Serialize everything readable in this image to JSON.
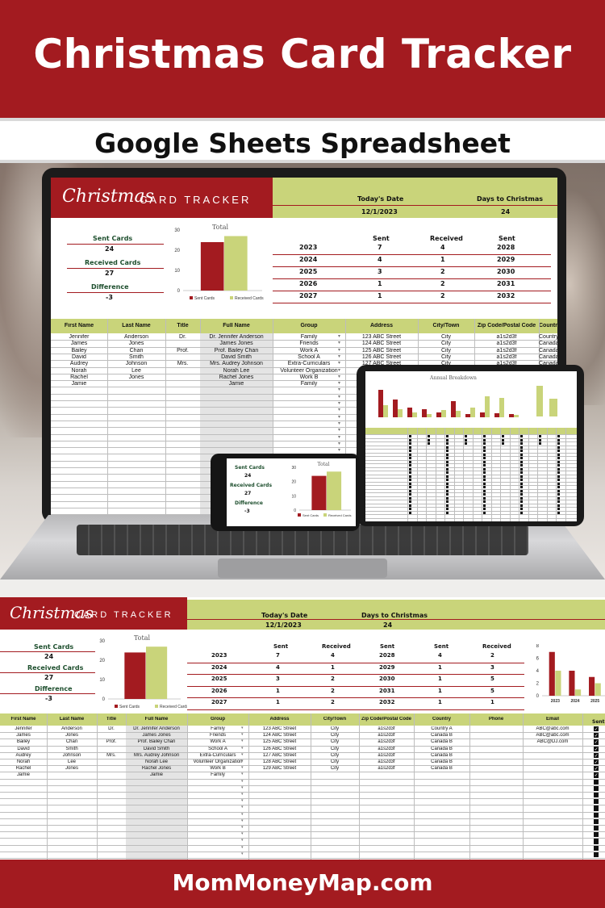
{
  "banner": {
    "title": "Christmas Card Tracker",
    "subtitle": "Google Sheets Spreadsheet"
  },
  "footer": {
    "site": "MomMoneyMap.com"
  },
  "colors": {
    "brand_red": "#a31b20",
    "brand_green": "#c9d47a",
    "label_green": "#1e4f2e"
  },
  "brand": {
    "script": "Christmas",
    "caps": "CARD TRACKER"
  },
  "header": {
    "todays_date_label": "Today's Date",
    "todays_date": "12/1/2023",
    "days_label": "Days to Christmas",
    "days": "24"
  },
  "summary": {
    "sent_label": "Sent Cards",
    "sent": "24",
    "received_label": "Received Cards",
    "received": "27",
    "difference_label": "Difference",
    "difference": "-3"
  },
  "chart_total": {
    "title": "Total",
    "legend": [
      "Sent Cards",
      "Received Cards"
    ]
  },
  "chart_data": [
    {
      "type": "bar",
      "title": "Total",
      "categories": [
        ""
      ],
      "series": [
        {
          "name": "Sent Cards",
          "values": [
            24
          ]
        },
        {
          "name": "Received Cards",
          "values": [
            27
          ]
        }
      ],
      "ylim": [
        0,
        30
      ],
      "yticks": [
        0,
        10,
        20,
        30
      ],
      "legend": "bottom"
    },
    {
      "type": "bar",
      "title": "",
      "categories": [
        "2023",
        "2024",
        "2025"
      ],
      "series": [
        {
          "name": "Sent",
          "values": [
            7,
            4,
            3
          ]
        },
        {
          "name": "Received",
          "values": [
            4,
            1,
            2
          ]
        }
      ],
      "ylim": [
        0,
        8
      ],
      "yticks": [
        0,
        2,
        4,
        6,
        8
      ]
    }
  ],
  "years": {
    "sent_label": "Sent",
    "received_label": "Received",
    "rows": [
      {
        "year": "2023",
        "sent": "7",
        "received": "4"
      },
      {
        "year": "2024",
        "sent": "4",
        "received": "1"
      },
      {
        "year": "2025",
        "sent": "3",
        "received": "2"
      },
      {
        "year": "2026",
        "sent": "1",
        "received": "2"
      },
      {
        "year": "2027",
        "sent": "1",
        "received": "2"
      }
    ]
  },
  "future_years": {
    "sent_label": "Sent",
    "received_label": "Received",
    "rows": [
      {
        "year": "2028",
        "sent": "4",
        "received": "2"
      },
      {
        "year": "2029",
        "sent": "1",
        "received": "3"
      },
      {
        "year": "2030",
        "sent": "1",
        "received": "5"
      },
      {
        "year": "2031",
        "sent": "1",
        "received": "5"
      },
      {
        "year": "2032",
        "sent": "1",
        "received": "1"
      }
    ]
  },
  "table": {
    "headers": [
      "First Name",
      "Last Name",
      "Title",
      "Full Name",
      "Group",
      "Address",
      "City/Town",
      "Zip Code/Postal Code",
      "Country",
      "Phone",
      "Email"
    ],
    "extra_header": "Sent",
    "rows": [
      [
        "Jennifer",
        "Anderson",
        "Dr.",
        "Dr. Jennifer Anderson",
        "Family",
        "123 ABC Street",
        "City",
        "a1s2d3f",
        "Country A",
        "",
        "ABC@abc.com"
      ],
      [
        "James",
        "Jones",
        "",
        "James Jones",
        "Friends",
        "124 ABC Street",
        "City",
        "a1s2d3f",
        "Canada B",
        "",
        "ABC@abc.com"
      ],
      [
        "Bailey",
        "Chan",
        "Prof.",
        "Prof. Bailey Chan",
        "Work A",
        "125 ABC Street",
        "City",
        "a1s2d3f",
        "Canada B",
        "",
        "ABC@DJ.com"
      ],
      [
        "David",
        "Smith",
        "",
        "David Smith",
        "School A",
        "126 ABC Street",
        "City",
        "a1s2d3f",
        "Canada B",
        "",
        ""
      ],
      [
        "Audrey",
        "Johnson",
        "Mrs.",
        "Mrs. Audrey Johnson",
        "Extra-Curriculars",
        "127 ABC Street",
        "City",
        "a1s2d3f",
        "Canada B",
        "",
        ""
      ],
      [
        "Norah",
        "Lee",
        "",
        "Norah Lee",
        "Volunteer Organization",
        "128 ABC Street",
        "City",
        "a1s2d3f",
        "Canada B",
        "",
        ""
      ],
      [
        "Rachel",
        "Jones",
        "",
        "Rachel Jones",
        "Work B",
        "129 ABC Street",
        "City",
        "a1s2d3f",
        "Canada B",
        "",
        ""
      ],
      [
        "Jamie",
        "",
        "",
        "Jamie",
        "Family",
        "",
        "",
        "",
        "",
        "",
        ""
      ]
    ]
  },
  "annual_chart": {
    "title": "Annual Breakdown"
  }
}
